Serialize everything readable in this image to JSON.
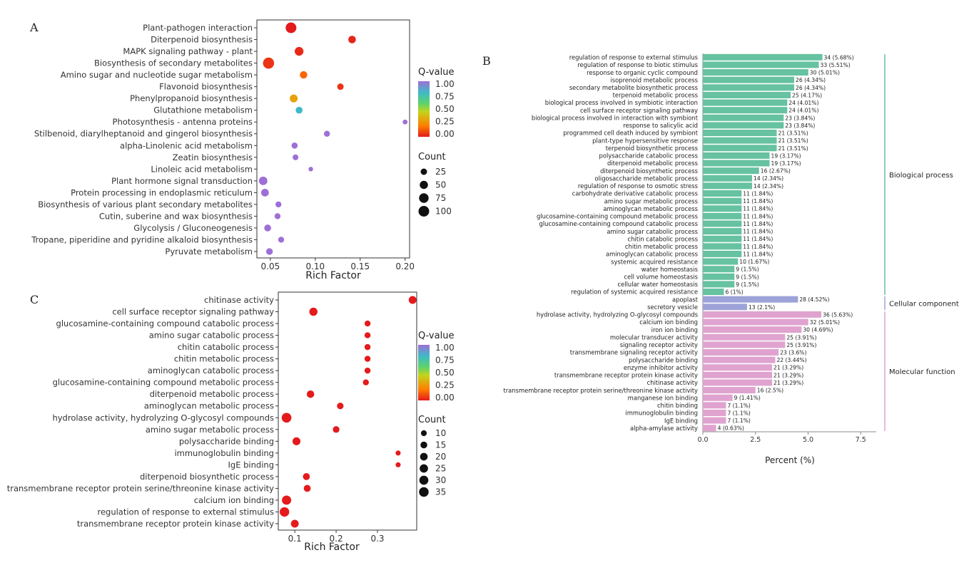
{
  "panel_labels": {
    "a": "A",
    "b": "B",
    "c": "C"
  },
  "legend_text": {
    "q_title": "Q-value",
    "count_title": "Count"
  },
  "scale_colors": [
    "#E41A1C",
    "#FF7F00",
    "#C4D41A",
    "#5CD36B",
    "#3FB9C9",
    "#9E6FD6"
  ],
  "chart_data": [
    {
      "id": "A",
      "type": "scatter",
      "title": "",
      "xlabel": "Rich Factor",
      "ylabel": "",
      "xlim": [
        0.035,
        0.205
      ],
      "xticks": [
        0.05,
        0.1,
        0.15,
        0.2
      ],
      "xtick_labels": [
        "0.05",
        "0.10",
        "0.15",
        "0.20"
      ],
      "q_ticks": [
        "1.00",
        "0.75",
        "0.50",
        "0.25",
        "0.00"
      ],
      "count_legend": [
        25,
        50,
        75,
        100
      ],
      "grid": false,
      "legend": "right",
      "categories": [
        "Plant-pathogen interaction",
        "Diterpenoid biosynthesis",
        "MAPK signaling pathway - plant",
        "Biosynthesis of secondary metabolites",
        "Amino sugar and nucleotide sugar metabolism",
        "Flavonoid biosynthesis",
        "Phenylpropanoid biosynthesis",
        "Glutathione metabolism",
        "Photosynthesis - antenna proteins",
        "Stilbenoid, diarylheptanoid and gingerol biosynthesis",
        "alpha-Linolenic acid metabolism",
        "Zeatin biosynthesis",
        "Linoleic acid metabolism",
        "Plant hormone signal transduction",
        "Protein processing in endoplasmic reticulum",
        "Biosynthesis of various plant secondary metabolites",
        "Cutin, suberine and wax biosynthesis",
        "Glycolysis / Gluconeogenesis",
        "Tropane, piperidine and pyridine alkaloid biosynthesis",
        "Pyruvate metabolism"
      ],
      "x": [
        0.073,
        0.141,
        0.082,
        0.048,
        0.087,
        0.128,
        0.076,
        0.082,
        0.2,
        0.113,
        0.077,
        0.078,
        0.095,
        0.042,
        0.044,
        0.059,
        0.058,
        0.047,
        0.062,
        0.049
      ],
      "count": [
        100,
        40,
        60,
        110,
        38,
        25,
        45,
        30,
        10,
        20,
        22,
        18,
        8,
        55,
        42,
        20,
        20,
        30,
        20,
        28
      ],
      "qvalue": [
        0.0,
        0.02,
        0.03,
        0.05,
        0.15,
        0.05,
        0.3,
        0.8,
        1.0,
        1.0,
        1.0,
        1.0,
        1.0,
        1.0,
        1.0,
        1.0,
        1.0,
        1.0,
        1.0,
        1.0
      ]
    },
    {
      "id": "B",
      "type": "bar",
      "orientation": "horizontal",
      "title": "",
      "xlabel": "Percent (%)",
      "ylabel": "",
      "xlim": [
        0,
        8.6
      ],
      "xticks": [
        0,
        2.5,
        5,
        7.5
      ],
      "xtick_labels": [
        "0.0",
        "2.5",
        "5.0",
        "7.5"
      ],
      "groups": [
        {
          "name": "Biological process",
          "color": "#66C2A0"
        },
        {
          "name": "Cellular component",
          "color": "#9DA3D8"
        },
        {
          "name": "Molecular function",
          "color": "#E0A3CF"
        }
      ],
      "categories": [
        "regulation of response to external stimulus",
        "regulation of response to biotic stimulus",
        "response to organic cyclic compound",
        "isoprenoid metabolic process",
        "secondary metabolite biosynthetic process",
        "terpenoid metabolic process",
        "biological process involved in symbiotic interaction",
        "cell surface receptor signaling pathway",
        "biological process involved in interaction with symbiont",
        "response to salicylic acid",
        "programmed cell death induced by symbiont",
        "plant-type hypersensitive response",
        "terpenoid biosynthetic process",
        "polysaccharide catabolic process",
        "diterpenoid metabolic process",
        "diterpenoid biosynthetic process",
        "oligosaccharide metabolic process",
        "regulation of response to osmotic stress",
        "carbohydrate derivative catabolic process",
        "amino sugar metabolic process",
        "aminoglycan metabolic process",
        "glucosamine-containing compound metabolic process",
        "glucosamine-containing compound catabolic process",
        "amino sugar catabolic process",
        "chitin catabolic process",
        "chitin metabolic process",
        "aminoglycan catabolic process",
        "systemic acquired resistance",
        "water homeostasis",
        "cell volume homeostasis",
        "cellular water homeostasis",
        "regulation of systemic acquired resistance",
        "apoplast",
        "secretory vesicle",
        "hydrolase activity, hydrolyzing O-glycosyl compounds",
        "calcium ion binding",
        "iron ion binding",
        "molecular transducer activity",
        "signaling receptor activity",
        "transmembrane signaling receptor activity",
        "polysaccharide binding",
        "enzyme inhibitor activity",
        "transmembrane receptor protein kinase activity",
        "chitinase activity",
        "transmembrane receptor protein serine/threonine kinase activity",
        "manganese ion binding",
        "chitin binding",
        "immunoglobulin binding",
        "IgE binding",
        "alpha-amylase activity"
      ],
      "group_index": [
        0,
        0,
        0,
        0,
        0,
        0,
        0,
        0,
        0,
        0,
        0,
        0,
        0,
        0,
        0,
        0,
        0,
        0,
        0,
        0,
        0,
        0,
        0,
        0,
        0,
        0,
        0,
        0,
        0,
        0,
        0,
        0,
        1,
        1,
        2,
        2,
        2,
        2,
        2,
        2,
        2,
        2,
        2,
        2,
        2,
        2,
        2,
        2,
        2,
        2
      ],
      "values": [
        5.68,
        5.51,
        5.01,
        4.34,
        4.34,
        4.17,
        4.01,
        4.01,
        3.84,
        3.84,
        3.51,
        3.51,
        3.51,
        3.17,
        3.17,
        2.67,
        2.34,
        2.34,
        1.84,
        1.84,
        1.84,
        1.84,
        1.84,
        1.84,
        1.84,
        1.84,
        1.84,
        1.67,
        1.5,
        1.5,
        1.5,
        1,
        4.52,
        2.1,
        5.63,
        5.01,
        4.69,
        3.91,
        3.91,
        3.6,
        3.44,
        3.29,
        3.29,
        3.29,
        2.5,
        1.41,
        1.1,
        1.1,
        1.1,
        0.63
      ],
      "bar_labels": [
        "34 (5.68%)",
        "33 (5.51%)",
        "30 (5.01%)",
        "26 (4.34%)",
        "26 (4.34%)",
        "25 (4.17%)",
        "24 (4.01%)",
        "24 (4.01%)",
        "23 (3.84%)",
        "23 (3.84%)",
        "21 (3.51%)",
        "21 (3.51%)",
        "21 (3.51%)",
        "19 (3.17%)",
        "19 (3.17%)",
        "16 (2.67%)",
        "14 (2.34%)",
        "14 (2.34%)",
        "11 (1.84%)",
        "11 (1.84%)",
        "11 (1.84%)",
        "11 (1.84%)",
        "11 (1.84%)",
        "11 (1.84%)",
        "11 (1.84%)",
        "11 (1.84%)",
        "11 (1.84%)",
        "10 (1.67%)",
        "9 (1.5%)",
        "9 (1.5%)",
        "9 (1.5%)",
        "6 (1%)",
        "28 (4.52%)",
        "13 (2.1%)",
        "36 (5.63%)",
        "32 (5.01%)",
        "30 (4.69%)",
        "25 (3.91%)",
        "25 (3.91%)",
        "23 (3.6%)",
        "22 (3.44%)",
        "21 (3.29%)",
        "21 (3.29%)",
        "21 (3.29%)",
        "16 (2.5%)",
        "9 (1.41%)",
        "7 (1.1%)",
        "7 (1.1%)",
        "7 (1.1%)",
        "4 (0.63%)"
      ]
    },
    {
      "id": "C",
      "type": "scatter",
      "title": "",
      "xlabel": "Rich Factor",
      "ylabel": "",
      "xlim": [
        0.06,
        0.395
      ],
      "xticks": [
        0.1,
        0.2,
        0.3
      ],
      "xtick_labels": [
        "0.1",
        "0.2",
        "0.3"
      ],
      "q_ticks": [
        "1.00",
        "0.75",
        "0.50",
        "0.25",
        "0.00"
      ],
      "count_legend": [
        10,
        15,
        20,
        25,
        30,
        35
      ],
      "grid": false,
      "legend": "right",
      "categories": [
        "chitinase activity",
        "cell surface receptor signaling pathway",
        "glucosamine-containing compound catabolic process",
        "amino sugar catabolic process",
        "chitin catabolic process",
        "chitin metabolic process",
        "aminoglycan catabolic process",
        "glucosamine-containing compound metabolic process",
        "diterpenoid metabolic process",
        "aminoglycan metabolic process",
        "hydrolase activity, hydrolyzing O-glycosyl compounds",
        "amino sugar metabolic process",
        "polysaccharide binding",
        "immunoglobulin binding",
        "IgE binding",
        "diterpenoid biosynthetic process",
        "transmembrane receptor protein serine/threonine kinase activity",
        "calcium ion binding",
        "regulation of response to external stimulus",
        "transmembrane receptor protein kinase activity"
      ],
      "x": [
        0.385,
        0.145,
        0.276,
        0.276,
        0.276,
        0.276,
        0.276,
        0.272,
        0.138,
        0.21,
        0.08,
        0.2,
        0.104,
        0.35,
        0.35,
        0.128,
        0.13,
        0.08,
        0.075,
        0.1
      ],
      "count": [
        21,
        24,
        11,
        11,
        11,
        11,
        11,
        11,
        19,
        14,
        36,
        14,
        22,
        7,
        7,
        16,
        16,
        32,
        34,
        21
      ],
      "qvalue": [
        0,
        0,
        0,
        0,
        0,
        0,
        0,
        0,
        0,
        0,
        0,
        0,
        0,
        0,
        0,
        0,
        0,
        0,
        0,
        0
      ]
    }
  ]
}
